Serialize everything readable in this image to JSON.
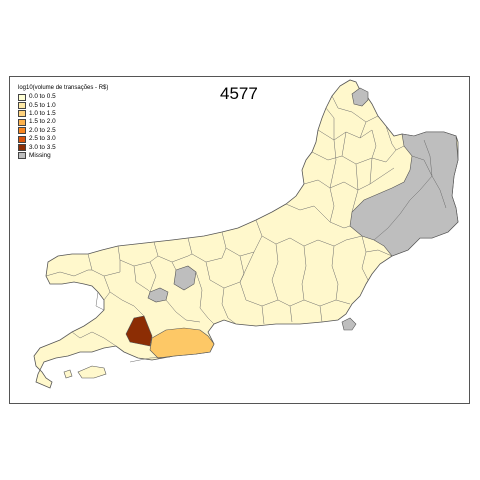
{
  "map": {
    "title": "4577",
    "legend": {
      "title": "log10(volume de transações - R$)",
      "items": [
        {
          "label": "0.0 to 0.5",
          "color": "#ffffd4"
        },
        {
          "label": "0.5 to 1.0",
          "color": "#fee9a6"
        },
        {
          "label": "1.0 to 1.5",
          "color": "#fed27d"
        },
        {
          "label": "1.5 to 2.0",
          "color": "#feb24c"
        },
        {
          "label": "2.0 to 2.5",
          "color": "#f9861f"
        },
        {
          "label": "2.5 to 3.0",
          "color": "#d9540c"
        },
        {
          "label": "3.0 to 3.5",
          "color": "#8c2d04"
        },
        {
          "label": "Missing",
          "color": "#bebebe"
        }
      ]
    },
    "colors": {
      "base": "#fff8cc",
      "highlight_mid": "#fdc866",
      "highlight_high": "#8c2d04",
      "missing": "#bebebe",
      "border": "#555555"
    }
  }
}
